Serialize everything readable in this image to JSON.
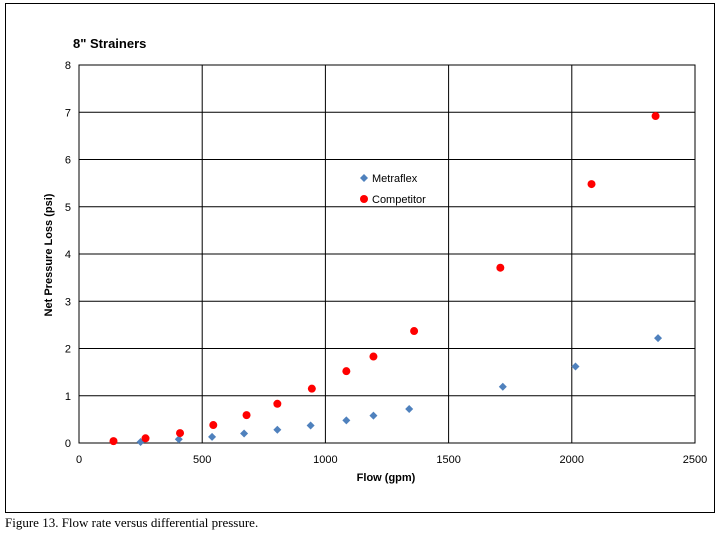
{
  "caption": "Figure 13.  Flow rate versus differential pressure.",
  "chart_data": {
    "type": "scatter",
    "title": "8\" Strainers",
    "xlabel": "Flow (gpm)",
    "ylabel": "Net Pressure Loss (psi)",
    "xlim": [
      0,
      2500
    ],
    "ylim": [
      0,
      8
    ],
    "xticks": [
      0,
      500,
      1000,
      1500,
      2000,
      2500
    ],
    "yticks": [
      0,
      1,
      2,
      3,
      4,
      5,
      6,
      7,
      8
    ],
    "grid": true,
    "legend_position": "center",
    "series": [
      {
        "name": "Metraflex",
        "marker": "diamond",
        "color": "#4f81bd",
        "points": [
          [
            250,
            0.02
          ],
          [
            405,
            0.08
          ],
          [
            540,
            0.13
          ],
          [
            670,
            0.2
          ],
          [
            805,
            0.28
          ],
          [
            940,
            0.37
          ],
          [
            1085,
            0.48
          ],
          [
            1195,
            0.58
          ],
          [
            1340,
            0.72
          ],
          [
            1720,
            1.19
          ],
          [
            2015,
            1.62
          ],
          [
            2350,
            2.22
          ]
        ]
      },
      {
        "name": "Competitor",
        "marker": "circle",
        "color": "#ff0000",
        "points": [
          [
            140,
            0.04
          ],
          [
            270,
            0.1
          ],
          [
            410,
            0.21
          ],
          [
            545,
            0.38
          ],
          [
            680,
            0.59
          ],
          [
            805,
            0.83
          ],
          [
            945,
            1.15
          ],
          [
            1085,
            1.52
          ],
          [
            1195,
            1.83
          ],
          [
            1360,
            2.37
          ],
          [
            1710,
            3.71
          ],
          [
            2080,
            5.48
          ],
          [
            2340,
            6.92
          ]
        ]
      }
    ]
  }
}
